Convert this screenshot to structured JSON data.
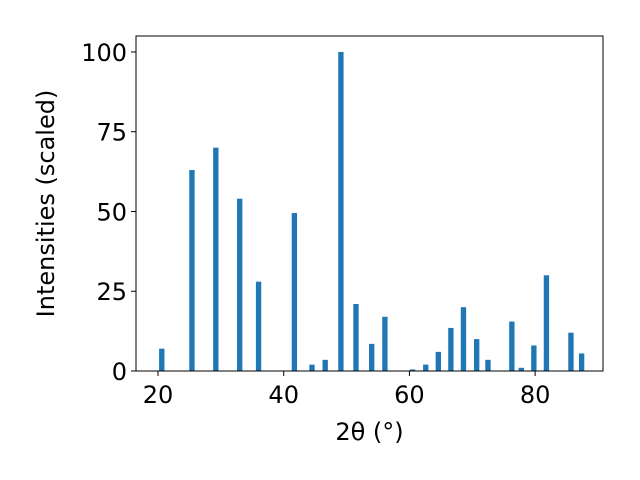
{
  "chart_data": {
    "type": "bar",
    "title": "",
    "xlabel": "2θ (°)",
    "ylabel": "Intensities (scaled)",
    "xlim": [
      16.5,
      90.8
    ],
    "ylim": [
      0,
      105
    ],
    "xticks": [
      20,
      40,
      60,
      80
    ],
    "yticks": [
      0,
      25,
      50,
      75,
      100
    ],
    "grid": false,
    "bar_color": "#1f77b4",
    "bar_width": 0.85,
    "x": [
      20.6,
      25.4,
      29.2,
      33.0,
      36.0,
      41.7,
      44.5,
      46.6,
      49.1,
      51.5,
      54.0,
      56.1,
      60.5,
      62.6,
      64.6,
      66.6,
      68.6,
      70.7,
      72.5,
      76.3,
      77.8,
      79.8,
      81.8,
      85.7,
      87.4
    ],
    "values": [
      7,
      63,
      70,
      54,
      28,
      49.5,
      2,
      3.5,
      100,
      21,
      8.5,
      17,
      0.5,
      2,
      6,
      13.5,
      20,
      10,
      3.5,
      15.5,
      1,
      8,
      30,
      12,
      5.5
    ]
  }
}
